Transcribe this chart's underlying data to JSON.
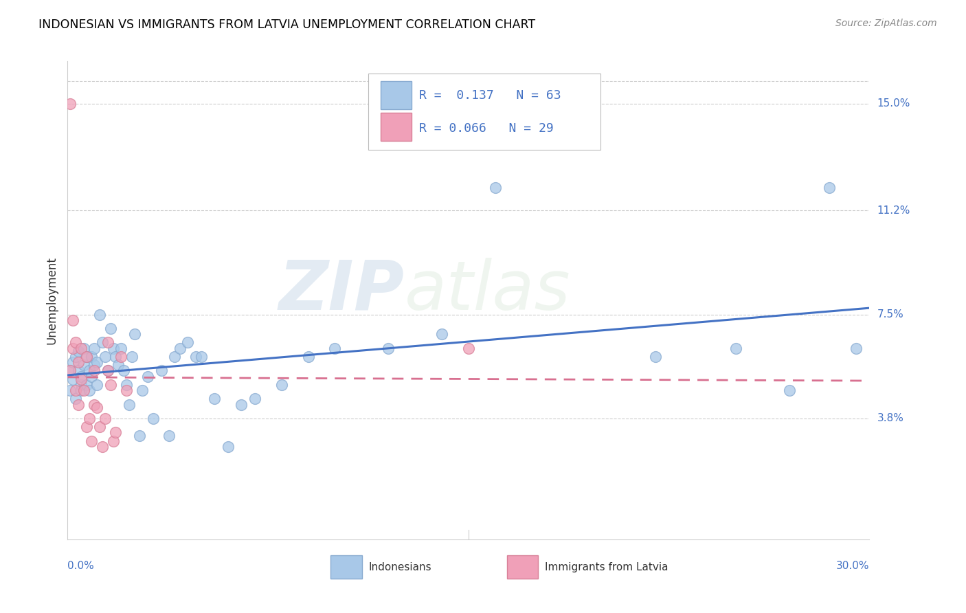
{
  "title": "INDONESIAN VS IMMIGRANTS FROM LATVIA UNEMPLOYMENT CORRELATION CHART",
  "source": "Source: ZipAtlas.com",
  "ylabel": "Unemployment",
  "ytick_labels": [
    "15.0%",
    "11.2%",
    "7.5%",
    "3.8%"
  ],
  "ytick_values": [
    0.15,
    0.112,
    0.075,
    0.038
  ],
  "xlim": [
    0.0,
    0.3
  ],
  "ylim": [
    -0.005,
    0.165
  ],
  "ymax_line": 0.158,
  "legend_blue_R": "0.137",
  "legend_blue_N": "63",
  "legend_pink_R": "0.066",
  "legend_pink_N": "29",
  "legend_label_blue": "Indonesians",
  "legend_label_pink": "Immigrants from Latvia",
  "color_blue": "#a8c8e8",
  "color_blue_edge": "#88aad0",
  "color_pink": "#f0a0b8",
  "color_pink_edge": "#d88098",
  "color_blue_line": "#4472c4",
  "color_pink_line": "#d87090",
  "color_axis_text": "#4472c4",
  "watermark_zip": "ZIP",
  "watermark_atlas": "atlas",
  "indonesian_x": [
    0.001,
    0.001,
    0.002,
    0.002,
    0.003,
    0.003,
    0.004,
    0.004,
    0.005,
    0.005,
    0.005,
    0.006,
    0.006,
    0.007,
    0.007,
    0.008,
    0.008,
    0.009,
    0.009,
    0.01,
    0.01,
    0.011,
    0.011,
    0.012,
    0.013,
    0.014,
    0.015,
    0.016,
    0.017,
    0.018,
    0.019,
    0.02,
    0.021,
    0.022,
    0.023,
    0.024,
    0.025,
    0.027,
    0.028,
    0.03,
    0.032,
    0.035,
    0.038,
    0.04,
    0.042,
    0.045,
    0.048,
    0.05,
    0.055,
    0.06,
    0.065,
    0.07,
    0.08,
    0.09,
    0.1,
    0.12,
    0.14,
    0.16,
    0.22,
    0.25,
    0.27,
    0.285,
    0.295
  ],
  "indonesian_y": [
    0.055,
    0.048,
    0.052,
    0.058,
    0.06,
    0.045,
    0.055,
    0.062,
    0.05,
    0.053,
    0.048,
    0.057,
    0.063,
    0.05,
    0.06,
    0.055,
    0.048,
    0.053,
    0.06,
    0.063,
    0.057,
    0.058,
    0.05,
    0.075,
    0.065,
    0.06,
    0.055,
    0.07,
    0.063,
    0.06,
    0.057,
    0.063,
    0.055,
    0.05,
    0.043,
    0.06,
    0.068,
    0.032,
    0.048,
    0.053,
    0.038,
    0.055,
    0.032,
    0.06,
    0.063,
    0.065,
    0.06,
    0.06,
    0.045,
    0.028,
    0.043,
    0.045,
    0.05,
    0.06,
    0.063,
    0.063,
    0.068,
    0.12,
    0.06,
    0.063,
    0.048,
    0.12,
    0.063
  ],
  "latvian_x": [
    0.001,
    0.001,
    0.002,
    0.002,
    0.003,
    0.003,
    0.004,
    0.004,
    0.005,
    0.005,
    0.006,
    0.007,
    0.007,
    0.008,
    0.009,
    0.01,
    0.01,
    0.011,
    0.012,
    0.013,
    0.014,
    0.015,
    0.015,
    0.016,
    0.017,
    0.018,
    0.02,
    0.022,
    0.15
  ],
  "latvian_y": [
    0.15,
    0.055,
    0.073,
    0.063,
    0.065,
    0.048,
    0.058,
    0.043,
    0.063,
    0.052,
    0.048,
    0.06,
    0.035,
    0.038,
    0.03,
    0.043,
    0.055,
    0.042,
    0.035,
    0.028,
    0.038,
    0.065,
    0.055,
    0.05,
    0.03,
    0.033,
    0.06,
    0.048,
    0.063
  ]
}
